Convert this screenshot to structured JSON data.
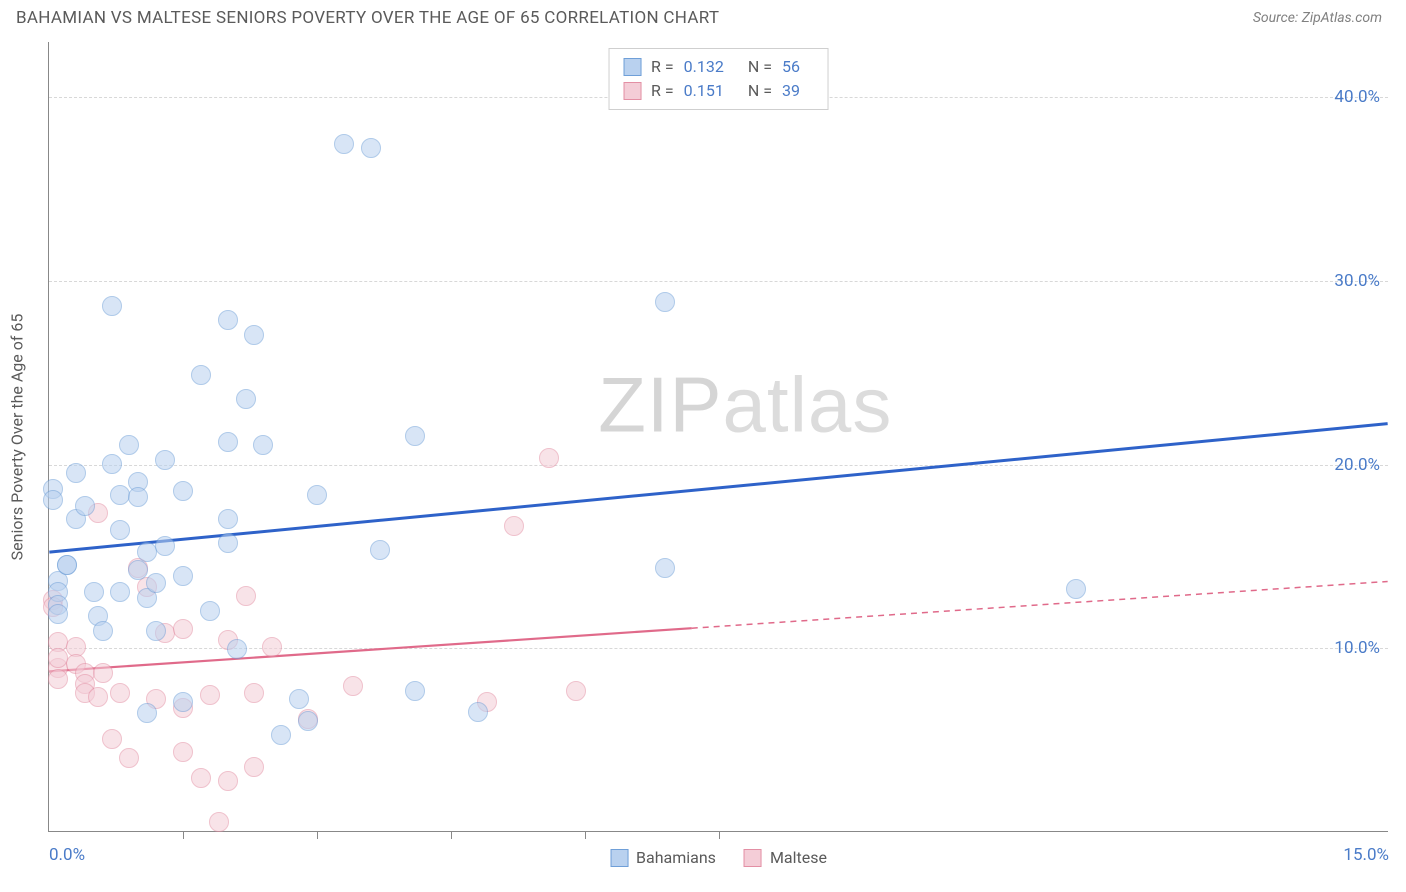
{
  "header": {
    "title": "BAHAMIAN VS MALTESE SENIORS POVERTY OVER THE AGE OF 65 CORRELATION CHART",
    "source": "Source: ZipAtlas.com"
  },
  "watermark_zip": "ZIP",
  "watermark_atlas": "atlas",
  "y_axis_label": "Seniors Poverty Over the Age of 65",
  "chart": {
    "type": "scatter",
    "xlim": [
      0,
      15
    ],
    "ylim": [
      0,
      43
    ],
    "x_ticks": [
      0,
      15
    ],
    "x_tick_labels": [
      "0.0%",
      "15.0%"
    ],
    "x_minor_ticks": [
      1.5,
      3.0,
      4.5,
      6.0,
      7.5
    ],
    "y_ticks": [
      10,
      20,
      30,
      40
    ],
    "y_tick_labels": [
      "10.0%",
      "20.0%",
      "30.0%",
      "40.0%"
    ],
    "background_color": "#ffffff",
    "grid_color": "#d8d8d8",
    "axis_color": "#888888",
    "marker_radius": 10,
    "point_opacity": 0.55,
    "series": {
      "bahamians": {
        "label": "Bahamians",
        "fill": "#b9d1ef",
        "stroke": "#6f9fd8",
        "line_color": "#2e62c9",
        "r_value": "0.132",
        "n_value": "56",
        "trend": {
          "x1": 0,
          "y1": 15.2,
          "x2": 15,
          "y2": 22.2
        },
        "dash_from_x": 15,
        "points": [
          [
            0.05,
            18.6
          ],
          [
            0.05,
            18.0
          ],
          [
            0.1,
            13.6
          ],
          [
            0.1,
            13.0
          ],
          [
            0.1,
            12.3
          ],
          [
            0.1,
            11.8
          ],
          [
            0.2,
            14.5
          ],
          [
            0.2,
            14.5
          ],
          [
            0.3,
            19.5
          ],
          [
            0.3,
            17.0
          ],
          [
            0.4,
            17.7
          ],
          [
            0.5,
            13.0
          ],
          [
            0.55,
            11.7
          ],
          [
            0.6,
            10.9
          ],
          [
            0.7,
            28.6
          ],
          [
            0.7,
            20.0
          ],
          [
            0.8,
            18.3
          ],
          [
            0.8,
            16.4
          ],
          [
            0.8,
            13.0
          ],
          [
            0.9,
            21.0
          ],
          [
            1.0,
            19.0
          ],
          [
            1.0,
            18.2
          ],
          [
            1.0,
            14.2
          ],
          [
            1.1,
            15.2
          ],
          [
            1.1,
            12.7
          ],
          [
            1.1,
            6.4
          ],
          [
            1.2,
            13.5
          ],
          [
            1.2,
            10.9
          ],
          [
            1.3,
            20.2
          ],
          [
            1.3,
            15.5
          ],
          [
            1.5,
            18.5
          ],
          [
            1.5,
            13.9
          ],
          [
            1.5,
            7.0
          ],
          [
            1.7,
            24.8
          ],
          [
            1.8,
            12.0
          ],
          [
            2.0,
            27.8
          ],
          [
            2.0,
            21.2
          ],
          [
            2.0,
            17.0
          ],
          [
            2.0,
            15.7
          ],
          [
            2.1,
            9.9
          ],
          [
            2.2,
            23.5
          ],
          [
            2.3,
            27.0
          ],
          [
            2.4,
            21.0
          ],
          [
            2.6,
            5.2
          ],
          [
            2.8,
            7.2
          ],
          [
            2.9,
            6.0
          ],
          [
            3.0,
            18.3
          ],
          [
            3.3,
            37.4
          ],
          [
            3.6,
            37.2
          ],
          [
            3.7,
            15.3
          ],
          [
            4.1,
            21.5
          ],
          [
            4.1,
            7.6
          ],
          [
            4.8,
            6.5
          ],
          [
            6.9,
            14.3
          ],
          [
            6.9,
            28.8
          ],
          [
            11.5,
            13.2
          ]
        ]
      },
      "maltese": {
        "label": "Maltese",
        "fill": "#f4cdd7",
        "stroke": "#e38fa4",
        "line_color": "#e06a8a",
        "r_value": "0.151",
        "n_value": "39",
        "trend": {
          "x1": 0,
          "y1": 8.7,
          "x2": 15,
          "y2": 13.6
        },
        "dash_from_x": 7.2,
        "points": [
          [
            0.05,
            12.6
          ],
          [
            0.05,
            12.2
          ],
          [
            0.1,
            10.3
          ],
          [
            0.1,
            8.9
          ],
          [
            0.1,
            8.3
          ],
          [
            0.1,
            9.4
          ],
          [
            0.3,
            10.0
          ],
          [
            0.3,
            9.1
          ],
          [
            0.4,
            8.6
          ],
          [
            0.4,
            8.0
          ],
          [
            0.4,
            7.5
          ],
          [
            0.55,
            17.3
          ],
          [
            0.55,
            7.3
          ],
          [
            0.6,
            8.6
          ],
          [
            0.7,
            5.0
          ],
          [
            0.8,
            7.5
          ],
          [
            0.9,
            4.0
          ],
          [
            1.0,
            14.3
          ],
          [
            1.1,
            13.3
          ],
          [
            1.2,
            7.2
          ],
          [
            1.3,
            10.8
          ],
          [
            1.5,
            11.0
          ],
          [
            1.5,
            6.7
          ],
          [
            1.5,
            4.3
          ],
          [
            1.7,
            2.9
          ],
          [
            1.8,
            7.4
          ],
          [
            1.9,
            0.5
          ],
          [
            2.0,
            2.7
          ],
          [
            2.0,
            10.4
          ],
          [
            2.2,
            12.8
          ],
          [
            2.3,
            3.5
          ],
          [
            2.3,
            7.5
          ],
          [
            2.5,
            10.0
          ],
          [
            2.9,
            6.1
          ],
          [
            3.4,
            7.9
          ],
          [
            4.9,
            7.0
          ],
          [
            5.2,
            16.6
          ],
          [
            5.6,
            20.3
          ],
          [
            5.9,
            7.6
          ]
        ]
      }
    }
  },
  "stats_legend": {
    "r_label": "R =",
    "n_label": "N ="
  }
}
